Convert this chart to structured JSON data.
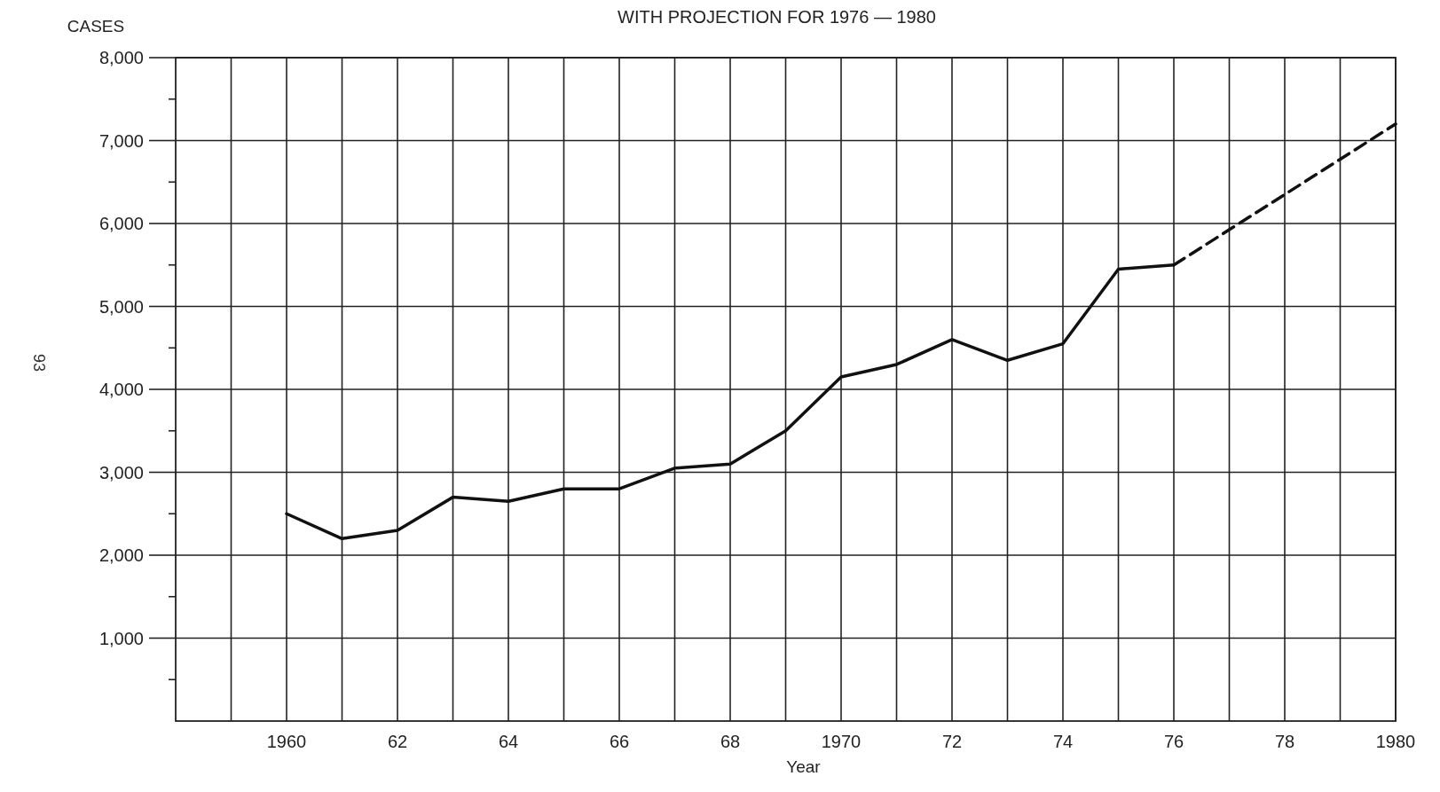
{
  "chart_data": {
    "type": "line",
    "title": "WITH PROJECTION FOR 1976 — 1980",
    "ylabel": "CASES",
    "xlabel": "Year",
    "annotations": [
      "93"
    ],
    "series": [
      {
        "color": "#111111",
        "line_style": "solid",
        "x": [
          1960,
          1961,
          1962,
          1963,
          1964,
          1965,
          1966,
          1967,
          1968,
          1969,
          1970,
          1971,
          1972,
          1973,
          1974,
          1975,
          1976
        ],
        "values": [
          2500,
          2200,
          2300,
          2700,
          2650,
          2800,
          2800,
          3050,
          3100,
          3500,
          4150,
          4300,
          4600,
          4350,
          4550,
          5450,
          5500
        ]
      },
      {
        "color": "#111111",
        "line_style": "dashed",
        "x": [
          1976,
          1980
        ],
        "values": [
          5500,
          7200
        ]
      }
    ],
    "xlim": [
      1958,
      1980
    ],
    "xticks": [
      {
        "value": 1959,
        "label": null
      },
      {
        "value": 1960,
        "label": "1960"
      },
      {
        "value": 1961,
        "label": null
      },
      {
        "value": 1962,
        "label": "62"
      },
      {
        "value": 1963,
        "label": null
      },
      {
        "value": 1964,
        "label": "64"
      },
      {
        "value": 1965,
        "label": null
      },
      {
        "value": 1966,
        "label": "66"
      },
      {
        "value": 1967,
        "label": null
      },
      {
        "value": 1968,
        "label": "68"
      },
      {
        "value": 1969,
        "label": null
      },
      {
        "value": 1970,
        "label": "1970"
      },
      {
        "value": 1971,
        "label": null
      },
      {
        "value": 1972,
        "label": "72"
      },
      {
        "value": 1973,
        "label": null
      },
      {
        "value": 1974,
        "label": "74"
      },
      {
        "value": 1975,
        "label": null
      },
      {
        "value": 1976,
        "label": "76"
      },
      {
        "value": 1977,
        "label": null
      },
      {
        "value": 1978,
        "label": "78"
      },
      {
        "value": 1979,
        "label": null
      },
      {
        "value": 1980,
        "label": "1980"
      }
    ],
    "ylim": [
      0,
      8000
    ],
    "yticks": [
      {
        "value": 500,
        "label": null
      },
      {
        "value": 1000,
        "label": "1,000"
      },
      {
        "value": 1500,
        "label": null
      },
      {
        "value": 2000,
        "label": "2,000"
      },
      {
        "value": 2500,
        "label": null
      },
      {
        "value": 3000,
        "label": "3,000"
      },
      {
        "value": 3500,
        "label": null
      },
      {
        "value": 4000,
        "label": "4,000"
      },
      {
        "value": 4500,
        "label": null
      },
      {
        "value": 5000,
        "label": "5,000"
      },
      {
        "value": 5500,
        "label": null
      },
      {
        "value": 6000,
        "label": "6,000"
      },
      {
        "value": 6500,
        "label": null
      },
      {
        "value": 7000,
        "label": "7,000"
      },
      {
        "value": 7500,
        "label": null
      },
      {
        "value": 8000,
        "label": "8,000"
      }
    ],
    "grid": true
  }
}
